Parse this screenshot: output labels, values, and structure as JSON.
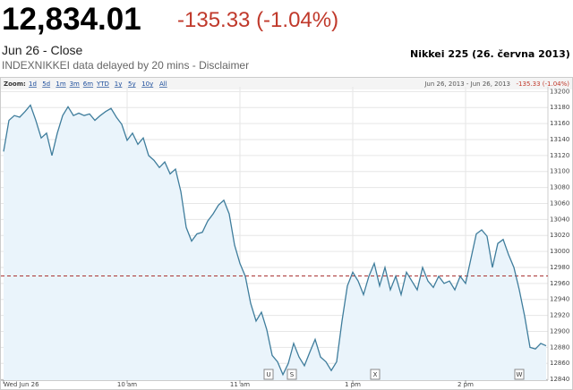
{
  "header": {
    "price": "12,834.01",
    "change": "-135.33 (-1.04%)",
    "date": "Jun 26 - Close",
    "source": "INDEXNIKKEI data delayed by 20 mins - Disclaimer",
    "caption": "Nikkei 225 (26. června 2013)"
  },
  "toolbar": {
    "label": "Zoom:",
    "options": [
      "1d",
      "5d",
      "1m",
      "3m",
      "6m",
      "YTD",
      "1y",
      "5y",
      "10y",
      "All"
    ],
    "range": "Jun 26, 2013 - Jun 26, 2013",
    "range_change": "-135.33 (-1.04%)"
  },
  "chart_data": {
    "type": "line",
    "color": "#3f7d9c",
    "fill": "#eaf4fb",
    "grid": true,
    "categories": [
      "Wed Jun 26",
      null,
      null,
      null,
      null,
      null,
      null,
      null,
      null,
      null,
      null,
      null,
      null,
      null,
      null,
      null,
      null,
      null,
      null,
      null,
      null,
      null,
      null,
      "10 am",
      null,
      null,
      null,
      null,
      null,
      null,
      null,
      null,
      null,
      null,
      null,
      null,
      null,
      null,
      null,
      null,
      null,
      null,
      null,
      null,
      "11 am",
      null,
      null,
      null,
      null,
      null,
      null,
      null,
      null,
      null,
      null,
      null,
      null,
      null,
      null,
      null,
      null,
      null,
      null,
      null,
      null,
      "1 pm",
      null,
      null,
      null,
      null,
      null,
      null,
      null,
      null,
      null,
      null,
      null,
      null,
      null,
      null,
      null,
      null,
      null,
      null,
      null,
      null,
      "2 pm",
      null,
      null,
      null,
      null,
      null,
      null,
      null,
      null,
      null,
      null,
      null,
      null,
      null,
      null,
      null
    ],
    "values": [
      13125,
      13164,
      13170,
      13168,
      13175,
      13183,
      13164,
      13142,
      13148,
      13120,
      13148,
      13170,
      13181,
      13170,
      13173,
      13170,
      13172,
      13164,
      13170,
      13175,
      13179,
      13168,
      13159,
      13139,
      13148,
      13134,
      13142,
      13120,
      13114,
      13105,
      13112,
      13097,
      13103,
      13075,
      13030,
      13013,
      13022,
      13024,
      13038,
      13047,
      13058,
      13064,
      13047,
      13008,
      12985,
      12969,
      12935,
      12913,
      12924,
      12902,
      12870,
      12862,
      12846,
      12860,
      12885,
      12868,
      12857,
      12874,
      12890,
      12868,
      12862,
      12851,
      12862,
      12913,
      12957,
      12974,
      12963,
      12946,
      12969,
      12985,
      12957,
      12980,
      12952,
      12969,
      12946,
      12974,
      12963,
      12952,
      12980,
      12963,
      12955,
      12969,
      12960,
      12963,
      12952,
      12969,
      12960,
      12991,
      13022,
      13027,
      13019,
      12980,
      13010,
      13015,
      12996,
      12980,
      12952,
      12919,
      12880,
      12878,
      12885,
      12882
    ],
    "reference_line": 12969.34,
    "ylim": [
      12839,
      13206
    ],
    "yticks": [
      12840,
      12860,
      12880,
      12900,
      12920,
      12940,
      12960,
      12980,
      13000,
      13020,
      13040,
      13060,
      13080,
      13100,
      13120,
      13140,
      13160,
      13180,
      13200
    ],
    "flags": [
      "U",
      "S",
      "X",
      "W"
    ]
  }
}
